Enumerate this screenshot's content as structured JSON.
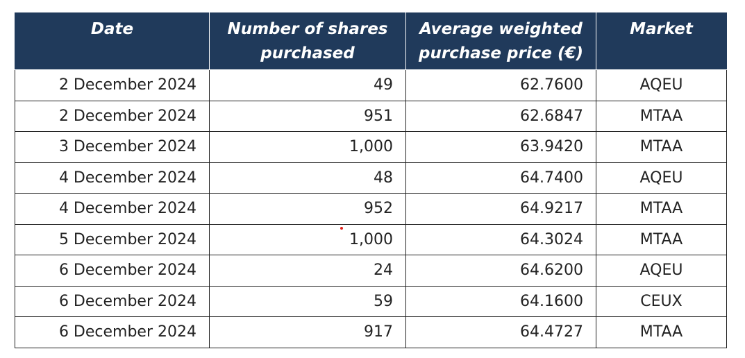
{
  "table": {
    "headers": {
      "date_label": "Date",
      "shares_label_line1": "Number of shares",
      "shares_label_line2": "purchased",
      "price_label_line1": "Average weighted",
      "price_label_line2": "purchase price (€)",
      "market_label": "Market"
    },
    "rows": [
      {
        "date": "2 December 2024",
        "shares": "49",
        "price": "62.7600",
        "market": "AQEU"
      },
      {
        "date": "2 December 2024",
        "shares": "951",
        "price": "62.6847",
        "market": "MTAA"
      },
      {
        "date": "3 December 2024",
        "shares": "1,000",
        "price": "63.9420",
        "market": "MTAA"
      },
      {
        "date": "4 December 2024",
        "shares": "48",
        "price": "64.7400",
        "market": "AQEU"
      },
      {
        "date": "4 December 2024",
        "shares": "952",
        "price": "64.9217",
        "market": "MTAA"
      },
      {
        "date": "5 December 2024",
        "shares": "1,000",
        "price": "64.3024",
        "market": "MTAA"
      },
      {
        "date": "6 December 2024",
        "shares": "24",
        "price": "64.6200",
        "market": "AQEU"
      },
      {
        "date": "6 December 2024",
        "shares": "59",
        "price": "64.1600",
        "market": "CEUX"
      },
      {
        "date": "6 December 2024",
        "shares": "917",
        "price": "64.4727",
        "market": "MTAA"
      }
    ]
  },
  "colors": {
    "header_background": "#203a5b",
    "header_text": "#ffffff",
    "cursor_dot": "#e0201b"
  }
}
